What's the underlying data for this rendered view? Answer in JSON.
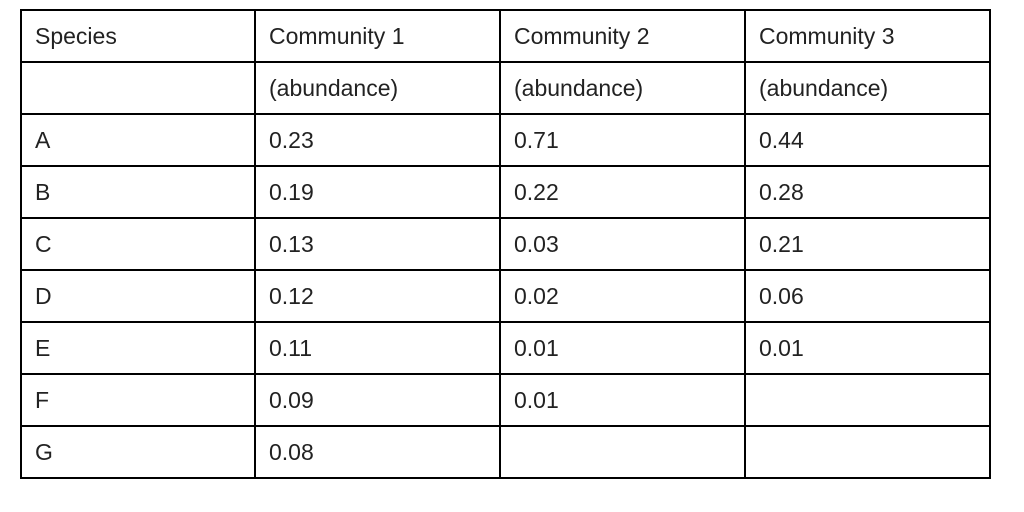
{
  "table": {
    "header": [
      "Species",
      "Community 1",
      "Community 2",
      "Community 3"
    ],
    "subheader": [
      null,
      "(abundance)",
      "(abundance)",
      "(abundance)"
    ],
    "rows": [
      [
        "A",
        "0.23",
        "0.71",
        "0.44"
      ],
      [
        "B",
        "0.19",
        "0.22",
        "0.28"
      ],
      [
        "C",
        "0.13",
        "0.03",
        "0.21"
      ],
      [
        "D",
        "0.12",
        "0.02",
        "0.06"
      ],
      [
        "E",
        "0.11",
        "0.01",
        "0.01"
      ],
      [
        "F",
        "0.09",
        "0.01",
        null
      ],
      [
        "G",
        "0.08",
        null,
        null
      ]
    ]
  }
}
